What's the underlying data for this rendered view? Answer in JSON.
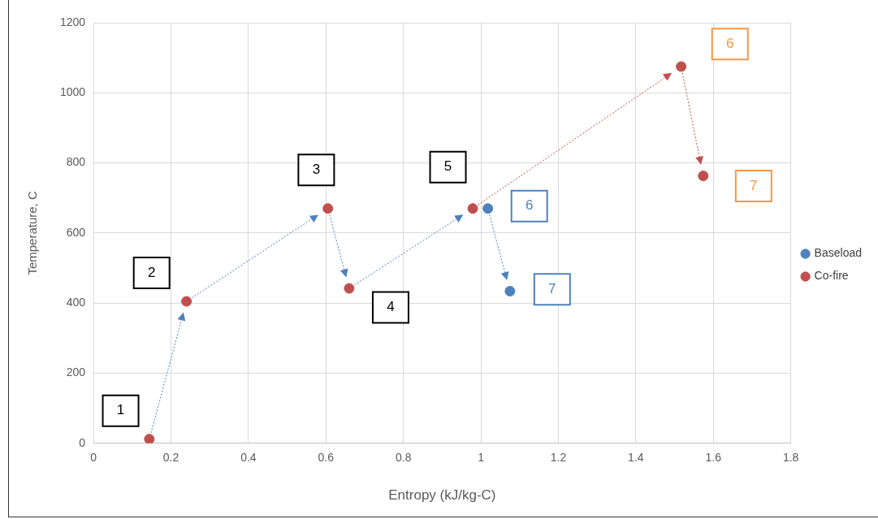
{
  "chart_data": {
    "type": "scatter",
    "xlabel": "Entropy (kJ/kg-C)",
    "ylabel": "Temperature, C",
    "xlim": [
      0,
      1.8
    ],
    "xticks": [
      0,
      0.2,
      0.4,
      0.6,
      0.8,
      1,
      1.2,
      1.4,
      1.6,
      1.8
    ],
    "ylim": [
      0,
      1200
    ],
    "yticks": [
      0,
      200,
      400,
      600,
      800,
      1000,
      1200
    ],
    "grid": true,
    "legend": "right",
    "marker": "circle",
    "series": [
      {
        "name": "Baseload",
        "color": "#4f81bd",
        "x": [
          null,
          null,
          null,
          null,
          null,
          1.018,
          1.075
        ],
        "values": [
          null,
          null,
          null,
          null,
          null,
          670,
          434
        ]
      },
      {
        "name": "Co-fire",
        "color": "#c0504d",
        "x": [
          0.144,
          0.24,
          0.605,
          0.66,
          0.979,
          1.517,
          1.574
        ],
        "values": [
          12,
          405,
          670,
          442,
          670,
          1075,
          763
        ]
      }
    ],
    "annotations": [
      {
        "text": "1",
        "x": 0.07,
        "y": 93
      },
      {
        "text": "2",
        "x": 0.15,
        "y": 486
      },
      {
        "text": "3",
        "x": 0.575,
        "y": 780
      },
      {
        "text": "4",
        "x": 0.767,
        "y": 388
      },
      {
        "text": "5",
        "x": 0.915,
        "y": 788
      },
      {
        "text": "6",
        "x": 1.125,
        "y": 677
      },
      {
        "text": "7",
        "x": 1.184,
        "y": 439
      },
      {
        "text": "6",
        "x": 1.643,
        "y": 1139
      },
      {
        "text": "7",
        "x": 1.704,
        "y": 734
      }
    ]
  }
}
